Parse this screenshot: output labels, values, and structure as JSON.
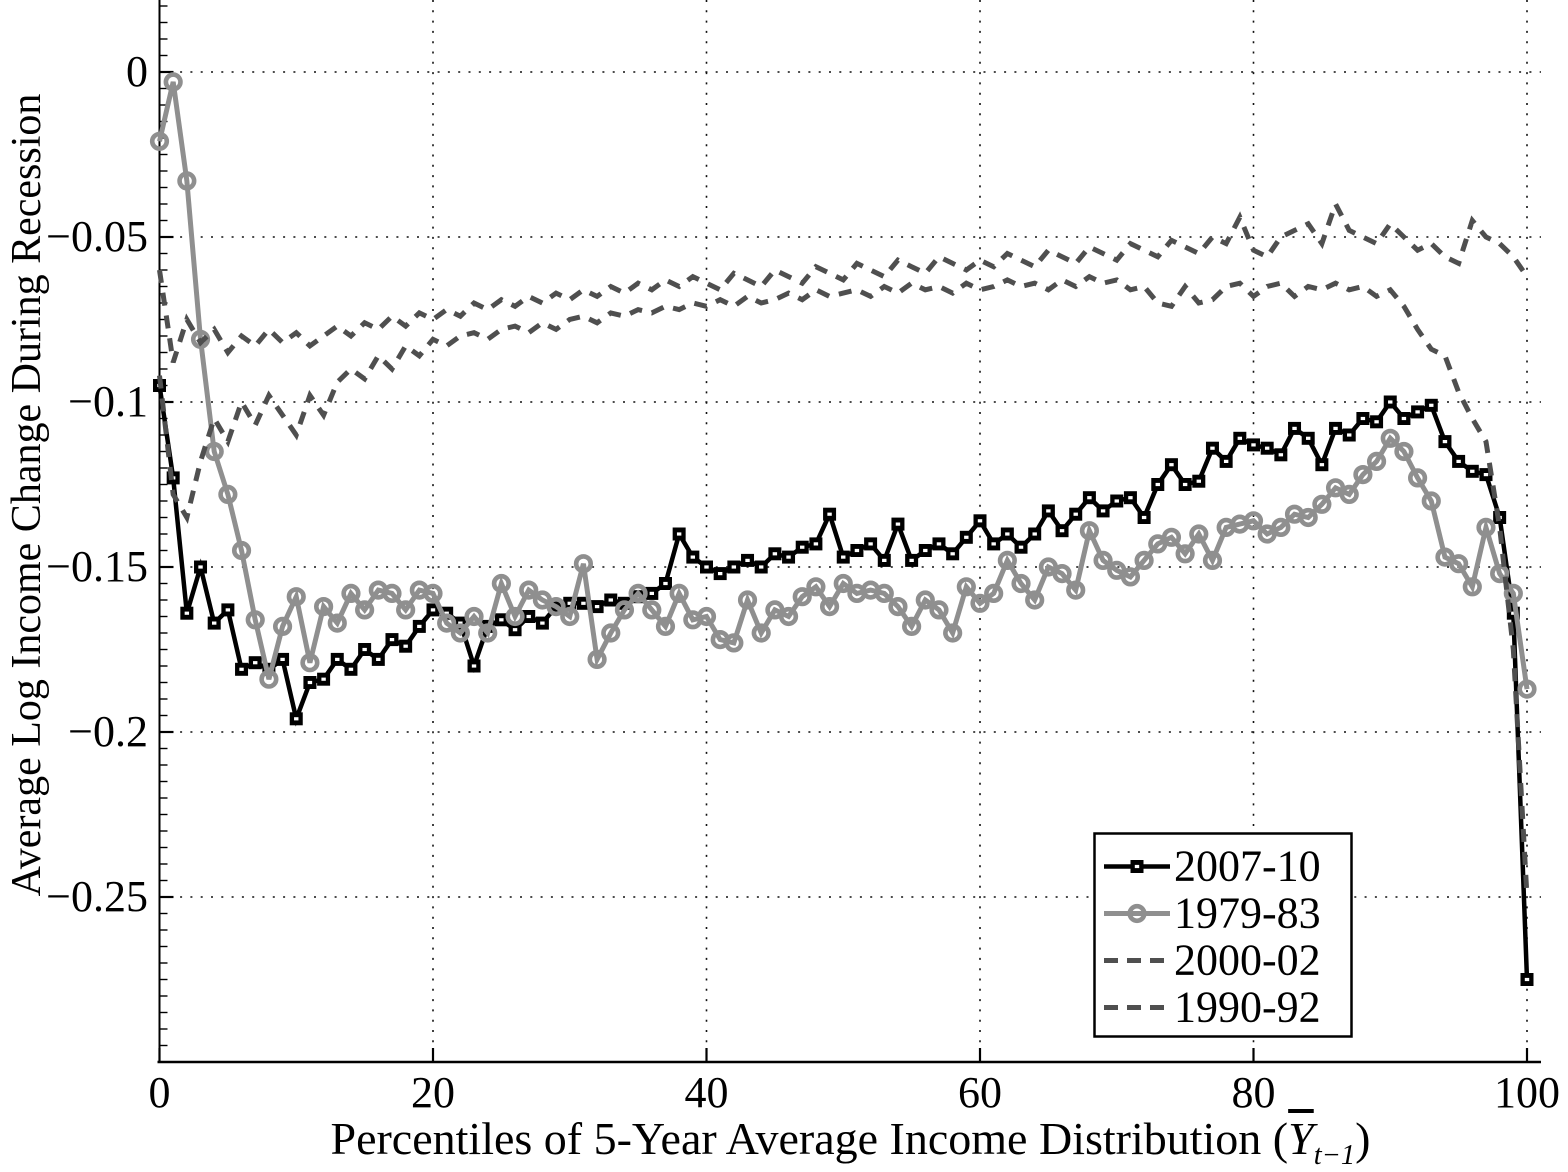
{
  "chart_data": {
    "type": "line",
    "title": "",
    "xlabel": "Percentiles of 5-Year Average Income Distribution (Y̅ t−1)",
    "xlabel_prefix": "Percentiles of 5-Year Average Income Distribution (",
    "xlabel_symbol": "Y",
    "xlabel_subscript": "t−1",
    "xlabel_suffix": ")",
    "ylabel": "Average Log Income Change During Recession",
    "xlim": [
      0,
      101
    ],
    "ylim": [
      -0.3,
      0.022
    ],
    "grid": true,
    "grid_style": "dotted",
    "grid_color": "#111111",
    "legend_position": "lower-right-inside",
    "x_ticks": [
      0,
      20,
      40,
      60,
      80,
      100
    ],
    "x_tick_labels": [
      "0",
      "20",
      "40",
      "60",
      "80",
      "100"
    ],
    "y_ticks": [
      0,
      -0.05,
      -0.1,
      -0.15,
      -0.2,
      -0.25
    ],
    "y_tick_labels": [
      "0",
      "−0.05",
      "−0.1",
      "−0.15",
      "−0.2",
      "−0.25"
    ],
    "x": [
      0,
      1,
      2,
      3,
      4,
      5,
      6,
      7,
      8,
      9,
      10,
      11,
      12,
      13,
      14,
      15,
      16,
      17,
      18,
      19,
      20,
      21,
      22,
      23,
      24,
      25,
      26,
      27,
      28,
      29,
      30,
      31,
      32,
      33,
      34,
      35,
      36,
      37,
      38,
      39,
      40,
      41,
      42,
      43,
      44,
      45,
      46,
      47,
      48,
      49,
      50,
      51,
      52,
      53,
      54,
      55,
      56,
      57,
      58,
      59,
      60,
      61,
      62,
      63,
      64,
      65,
      66,
      67,
      68,
      69,
      70,
      71,
      72,
      73,
      74,
      75,
      76,
      77,
      78,
      79,
      80,
      81,
      82,
      83,
      84,
      85,
      86,
      87,
      88,
      89,
      90,
      91,
      92,
      93,
      94,
      95,
      96,
      97,
      98,
      99,
      100
    ],
    "series": [
      {
        "name": "2007-10",
        "style": "solid",
        "marker": "square",
        "color": "#000000",
        "line_width": 4.5,
        "values": [
          -0.095,
          -0.123,
          -0.164,
          -0.15,
          -0.167,
          -0.163,
          -0.181,
          -0.179,
          -0.181,
          -0.178,
          -0.196,
          -0.185,
          -0.184,
          -0.178,
          -0.181,
          -0.175,
          -0.178,
          -0.172,
          -0.174,
          -0.168,
          -0.163,
          -0.164,
          -0.167,
          -0.18,
          -0.168,
          -0.166,
          -0.169,
          -0.165,
          -0.167,
          -0.162,
          -0.161,
          -0.161,
          -0.162,
          -0.16,
          -0.161,
          -0.159,
          -0.158,
          -0.155,
          -0.14,
          -0.147,
          -0.15,
          -0.152,
          -0.15,
          -0.148,
          -0.15,
          -0.146,
          -0.147,
          -0.144,
          -0.143,
          -0.134,
          -0.147,
          -0.145,
          -0.143,
          -0.148,
          -0.137,
          -0.148,
          -0.145,
          -0.143,
          -0.146,
          -0.141,
          -0.136,
          -0.143,
          -0.14,
          -0.144,
          -0.14,
          -0.133,
          -0.139,
          -0.134,
          -0.129,
          -0.133,
          -0.13,
          -0.129,
          -0.135,
          -0.125,
          -0.119,
          -0.125,
          -0.124,
          -0.114,
          -0.118,
          -0.111,
          -0.113,
          -0.114,
          -0.116,
          -0.108,
          -0.111,
          -0.119,
          -0.108,
          -0.11,
          -0.105,
          -0.106,
          -0.1,
          -0.105,
          -0.103,
          -0.101,
          -0.112,
          -0.118,
          -0.121,
          -0.122,
          -0.135,
          -0.164,
          -0.275
        ]
      },
      {
        "name": "1979-83",
        "style": "solid",
        "marker": "circle",
        "color": "#8f8f8f",
        "line_width": 5,
        "values": [
          -0.021,
          -0.003,
          -0.033,
          -0.081,
          -0.115,
          -0.128,
          -0.145,
          -0.166,
          -0.184,
          -0.168,
          -0.159,
          -0.179,
          -0.162,
          -0.167,
          -0.158,
          -0.163,
          -0.157,
          -0.158,
          -0.163,
          -0.157,
          -0.158,
          -0.167,
          -0.17,
          -0.165,
          -0.17,
          -0.155,
          -0.165,
          -0.157,
          -0.16,
          -0.162,
          -0.165,
          -0.149,
          -0.178,
          -0.17,
          -0.163,
          -0.158,
          -0.163,
          -0.168,
          -0.158,
          -0.166,
          -0.165,
          -0.172,
          -0.173,
          -0.16,
          -0.17,
          -0.163,
          -0.165,
          -0.159,
          -0.156,
          -0.162,
          -0.155,
          -0.158,
          -0.157,
          -0.158,
          -0.162,
          -0.168,
          -0.16,
          -0.163,
          -0.17,
          -0.156,
          -0.161,
          -0.158,
          -0.148,
          -0.155,
          -0.16,
          -0.15,
          -0.152,
          -0.157,
          -0.139,
          -0.148,
          -0.151,
          -0.153,
          -0.148,
          -0.143,
          -0.141,
          -0.146,
          -0.14,
          -0.148,
          -0.138,
          -0.137,
          -0.136,
          -0.14,
          -0.138,
          -0.134,
          -0.135,
          -0.131,
          -0.126,
          -0.128,
          -0.122,
          -0.118,
          -0.111,
          -0.115,
          -0.123,
          -0.13,
          -0.147,
          -0.149,
          -0.156,
          -0.138,
          -0.152,
          -0.158,
          -0.187
        ]
      },
      {
        "name": "2000-02",
        "style": "dashed",
        "marker": "none",
        "color": "#4f4f4f",
        "line_width": 5,
        "values": [
          -0.092,
          -0.128,
          -0.135,
          -0.118,
          -0.105,
          -0.112,
          -0.1,
          -0.107,
          -0.098,
          -0.104,
          -0.11,
          -0.098,
          -0.104,
          -0.094,
          -0.09,
          -0.093,
          -0.086,
          -0.09,
          -0.083,
          -0.086,
          -0.081,
          -0.083,
          -0.08,
          -0.079,
          -0.081,
          -0.078,
          -0.077,
          -0.079,
          -0.076,
          -0.078,
          -0.075,
          -0.074,
          -0.076,
          -0.073,
          -0.074,
          -0.072,
          -0.073,
          -0.071,
          -0.072,
          -0.07,
          -0.071,
          -0.069,
          -0.071,
          -0.068,
          -0.07,
          -0.069,
          -0.067,
          -0.069,
          -0.066,
          -0.068,
          -0.067,
          -0.066,
          -0.068,
          -0.065,
          -0.067,
          -0.064,
          -0.066,
          -0.065,
          -0.067,
          -0.064,
          -0.066,
          -0.065,
          -0.063,
          -0.065,
          -0.064,
          -0.066,
          -0.063,
          -0.065,
          -0.062,
          -0.064,
          -0.063,
          -0.066,
          -0.065,
          -0.07,
          -0.071,
          -0.065,
          -0.07,
          -0.069,
          -0.065,
          -0.064,
          -0.068,
          -0.065,
          -0.064,
          -0.068,
          -0.065,
          -0.066,
          -0.064,
          -0.066,
          -0.065,
          -0.068,
          -0.066,
          -0.071,
          -0.078,
          -0.084,
          -0.086,
          -0.097,
          -0.105,
          -0.112,
          -0.138,
          -0.175,
          -0.25
        ]
      },
      {
        "name": "1990-92",
        "style": "dashed",
        "marker": "none",
        "color": "#4f4f4f",
        "line_width": 5,
        "values": [
          -0.06,
          -0.088,
          -0.075,
          -0.082,
          -0.078,
          -0.085,
          -0.08,
          -0.083,
          -0.078,
          -0.082,
          -0.079,
          -0.083,
          -0.08,
          -0.077,
          -0.08,
          -0.076,
          -0.078,
          -0.074,
          -0.077,
          -0.073,
          -0.075,
          -0.072,
          -0.074,
          -0.07,
          -0.072,
          -0.069,
          -0.071,
          -0.068,
          -0.07,
          -0.067,
          -0.069,
          -0.066,
          -0.068,
          -0.065,
          -0.067,
          -0.064,
          -0.066,
          -0.063,
          -0.065,
          -0.062,
          -0.064,
          -0.066,
          -0.061,
          -0.063,
          -0.065,
          -0.06,
          -0.062,
          -0.064,
          -0.059,
          -0.061,
          -0.063,
          -0.058,
          -0.06,
          -0.062,
          -0.057,
          -0.059,
          -0.061,
          -0.056,
          -0.058,
          -0.06,
          -0.057,
          -0.059,
          -0.055,
          -0.057,
          -0.059,
          -0.054,
          -0.056,
          -0.058,
          -0.053,
          -0.055,
          -0.057,
          -0.052,
          -0.054,
          -0.056,
          -0.051,
          -0.053,
          -0.055,
          -0.05,
          -0.052,
          -0.044,
          -0.054,
          -0.056,
          -0.05,
          -0.048,
          -0.046,
          -0.052,
          -0.04,
          -0.048,
          -0.05,
          -0.052,
          -0.046,
          -0.05,
          -0.054,
          -0.052,
          -0.056,
          -0.058,
          -0.045,
          -0.05,
          -0.052,
          -0.056,
          -0.062
        ]
      }
    ]
  }
}
